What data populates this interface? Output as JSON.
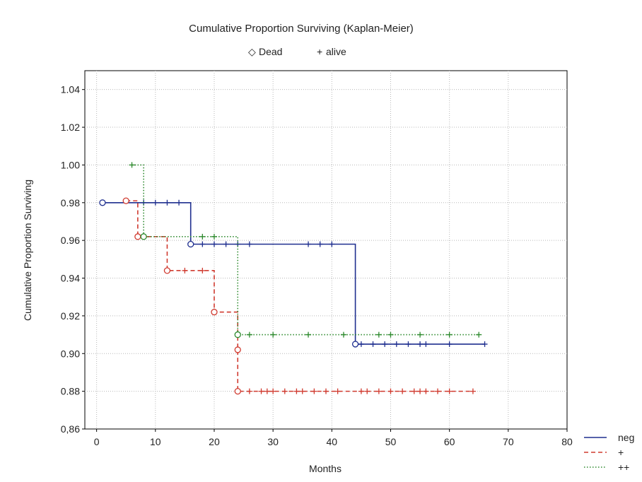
{
  "chart_data": {
    "type": "line",
    "title": "Cumulative Proportion Surviving (Kaplan-Meier)",
    "xlabel": "Months",
    "ylabel": "Cumulative Proportion Surviving",
    "xlim": [
      -2,
      80
    ],
    "ylim": [
      0.86,
      1.05
    ],
    "xticks": [
      0,
      10,
      20,
      30,
      40,
      50,
      60,
      70,
      80
    ],
    "xtick_labels": [
      "0",
      "10",
      "20",
      "30",
      "40",
      "50",
      "60",
      "70",
      "80"
    ],
    "yticks": [
      0.86,
      0.88,
      0.9,
      0.92,
      0.94,
      0.96,
      0.98,
      1.0,
      1.02,
      1.04
    ],
    "ytick_labels": [
      "0,86",
      "0.88",
      "0.90",
      "0.92",
      "0.94",
      "0.96",
      "0.98",
      "1.00",
      "1.02",
      "1.04"
    ],
    "grid": true,
    "marker_legend": [
      {
        "symbol": "◇",
        "label": "Dead"
      },
      {
        "symbol": "+",
        "label": "alive"
      }
    ],
    "series": [
      {
        "name": "neg",
        "color": "#1f2f8f",
        "dash": "solid",
        "steps": [
          [
            1,
            0.98
          ],
          [
            16,
            0.958
          ],
          [
            44,
            0.905
          ],
          [
            66,
            0.905
          ]
        ],
        "dead": [
          [
            1,
            0.98
          ],
          [
            16,
            0.958
          ],
          [
            44,
            0.905
          ]
        ],
        "alive": [
          [
            8,
            0.98
          ],
          [
            10,
            0.98
          ],
          [
            12,
            0.98
          ],
          [
            14,
            0.98
          ],
          [
            18,
            0.958
          ],
          [
            20,
            0.958
          ],
          [
            22,
            0.958
          ],
          [
            24,
            0.958
          ],
          [
            26,
            0.958
          ],
          [
            36,
            0.958
          ],
          [
            38,
            0.958
          ],
          [
            40,
            0.958
          ],
          [
            45,
            0.905
          ],
          [
            47,
            0.905
          ],
          [
            49,
            0.905
          ],
          [
            51,
            0.905
          ],
          [
            53,
            0.905
          ],
          [
            55,
            0.905
          ],
          [
            56,
            0.905
          ],
          [
            60,
            0.905
          ],
          [
            66,
            0.905
          ]
        ]
      },
      {
        "name": "+",
        "color": "#d03a2f",
        "dash": "dashed",
        "steps": [
          [
            5,
            0.981
          ],
          [
            7,
            0.962
          ],
          [
            12,
            0.944
          ],
          [
            20,
            0.922
          ],
          [
            24,
            0.902
          ],
          [
            24,
            0.88
          ],
          [
            64,
            0.88
          ]
        ],
        "dead": [
          [
            5,
            0.981
          ],
          [
            7,
            0.962
          ],
          [
            12,
            0.944
          ],
          [
            20,
            0.922
          ],
          [
            24,
            0.902
          ],
          [
            24,
            0.88
          ]
        ],
        "alive": [
          [
            15,
            0.944
          ],
          [
            18,
            0.944
          ],
          [
            26,
            0.88
          ],
          [
            28,
            0.88
          ],
          [
            29,
            0.88
          ],
          [
            30,
            0.88
          ],
          [
            32,
            0.88
          ],
          [
            34,
            0.88
          ],
          [
            35,
            0.88
          ],
          [
            37,
            0.88
          ],
          [
            39,
            0.88
          ],
          [
            41,
            0.88
          ],
          [
            45,
            0.88
          ],
          [
            46,
            0.88
          ],
          [
            48,
            0.88
          ],
          [
            50,
            0.88
          ],
          [
            52,
            0.88
          ],
          [
            54,
            0.88
          ],
          [
            55,
            0.88
          ],
          [
            56,
            0.88
          ],
          [
            58,
            0.88
          ],
          [
            60,
            0.88
          ],
          [
            64,
            0.88
          ]
        ]
      },
      {
        "name": "++",
        "color": "#2e8a2e",
        "dash": "dotted",
        "steps": [
          [
            6,
            1.0
          ],
          [
            8,
            0.962
          ],
          [
            24,
            0.91
          ],
          [
            65,
            0.91
          ]
        ],
        "dead": [
          [
            8,
            0.962
          ],
          [
            24,
            0.91
          ]
        ],
        "alive": [
          [
            6,
            1.0
          ],
          [
            18,
            0.962
          ],
          [
            20,
            0.962
          ],
          [
            26,
            0.91
          ],
          [
            30,
            0.91
          ],
          [
            36,
            0.91
          ],
          [
            42,
            0.91
          ],
          [
            48,
            0.91
          ],
          [
            50,
            0.91
          ],
          [
            55,
            0.91
          ],
          [
            60,
            0.91
          ],
          [
            65,
            0.91
          ]
        ]
      }
    ]
  }
}
